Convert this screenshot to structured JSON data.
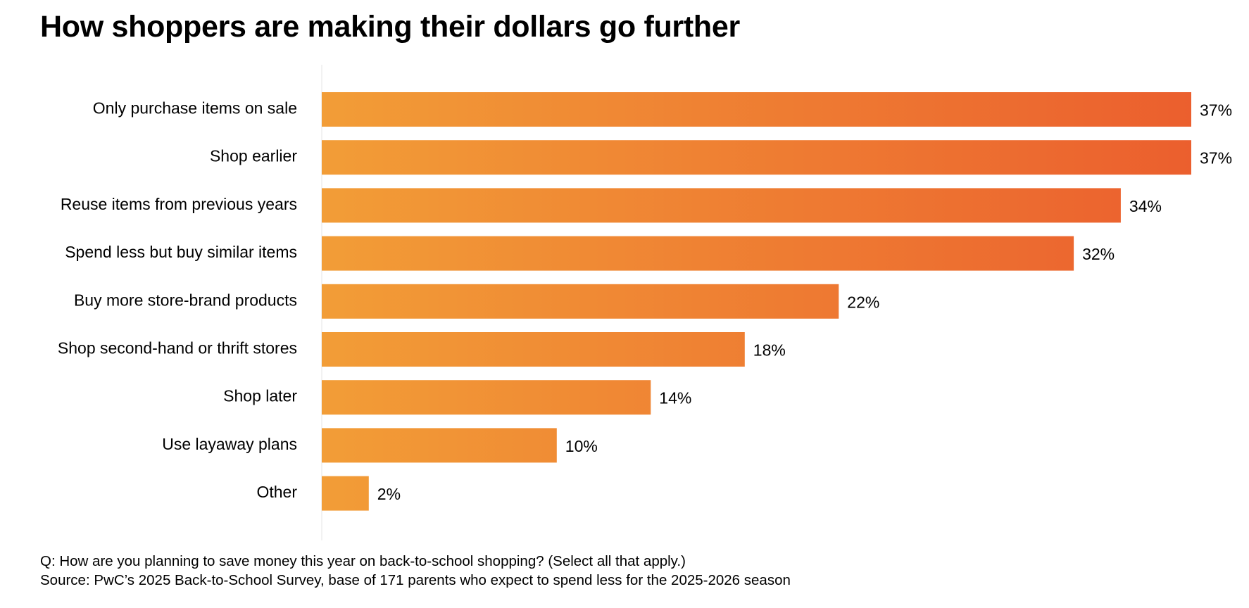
{
  "chart_data": {
    "type": "bar",
    "orientation": "horizontal",
    "title": "How shoppers are making their dollars go further",
    "categories": [
      "Only purchase items on sale",
      "Shop earlier",
      "Reuse items from previous years",
      "Spend less but buy similar items",
      "Buy more store-brand products",
      "Shop second-hand or thrift stores",
      "Shop later",
      "Use layaway plans",
      "Other"
    ],
    "values": [
      37,
      37,
      34,
      32,
      22,
      18,
      14,
      10,
      2
    ],
    "value_labels": [
      "37%",
      "37%",
      "34%",
      "32%",
      "22%",
      "18%",
      "14%",
      "10%",
      "2%"
    ],
    "unit": "%",
    "xlim": [
      0,
      37
    ],
    "grid": false,
    "legend": "none",
    "colors": {
      "bar_start": "#F29D37",
      "bar_end": "#EB5F2E",
      "axis": "#E6E6E6"
    }
  },
  "footnotes": {
    "question": "Q: How are you planning to save money this year on back-to-school shopping? (Select all that apply.)",
    "source": "Source: PwC’s 2025 Back-to-School Survey, base of 171 parents who expect to spend less for the 2025-2026 season"
  }
}
